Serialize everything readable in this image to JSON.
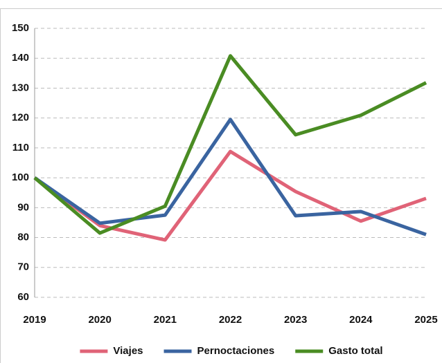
{
  "chart_data": {
    "type": "line",
    "categories": [
      "2019",
      "2020",
      "2021",
      "2022",
      "2023",
      "2024",
      "2025"
    ],
    "series": [
      {
        "name": "Viajes",
        "color": "#e06377",
        "values": [
          100,
          84,
          79.2,
          108.8,
          95.4,
          85.5,
          93.1
        ]
      },
      {
        "name": "Pernoctaciones",
        "color": "#3a64a0",
        "values": [
          100,
          84.8,
          87.5,
          119.5,
          87.3,
          88.7,
          81
        ]
      },
      {
        "name": "Gasto total",
        "color": "#4a8c23",
        "values": [
          100,
          81.5,
          90.5,
          140.8,
          114.4,
          120.9,
          131.8
        ]
      }
    ],
    "ylim": [
      60,
      150
    ],
    "yticks": [
      60,
      70,
      80,
      90,
      100,
      110,
      120,
      130,
      140,
      150
    ],
    "grid": true,
    "legend": "bottom"
  }
}
